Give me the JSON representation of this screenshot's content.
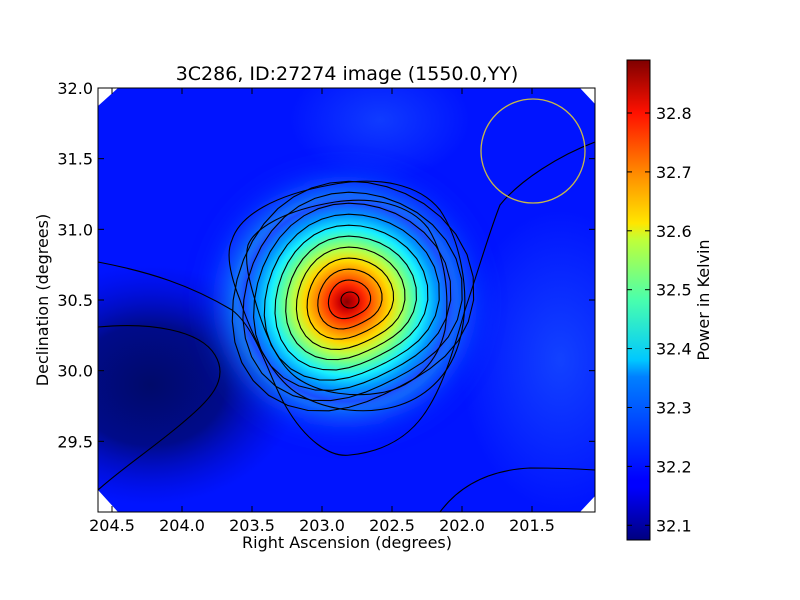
{
  "chart_data": {
    "type": "heatmap",
    "title": "3C286, ID:27274 image (1550.0,YY)",
    "xlabel": "Right Ascension (degrees)",
    "ylabel": "Declination (degrees)",
    "xlim": [
      204.6,
      201.05
    ],
    "ylim": [
      29.0,
      32.0
    ],
    "x_ticks": [
      "204.5",
      "204.0",
      "203.5",
      "203.0",
      "202.5",
      "202.0",
      "201.5"
    ],
    "x_tick_values": [
      204.5,
      204.0,
      203.5,
      203.0,
      202.5,
      202.0,
      201.5
    ],
    "y_ticks": [
      "29.5",
      "30.0",
      "30.5",
      "31.0",
      "31.5",
      "32.0"
    ],
    "y_tick_values": [
      29.5,
      30.0,
      30.5,
      31.0,
      31.5,
      32.0
    ],
    "colormap": "jet",
    "colorbar": {
      "label": "Power in Kelvin",
      "range": [
        32.075,
        32.89
      ],
      "ticks": [
        "32.1",
        "32.2",
        "32.3",
        "32.4",
        "32.5",
        "32.6",
        "32.7",
        "32.8"
      ],
      "tick_values": [
        32.1,
        32.2,
        32.3,
        32.4,
        32.5,
        32.6,
        32.7,
        32.8
      ]
    },
    "peak": {
      "ra": 202.78,
      "dec": 30.5,
      "value": 32.89
    },
    "beam_circle": {
      "ra": 201.5,
      "dec": 31.56,
      "radius_deg": 0.37,
      "color": "#c8b84a"
    }
  }
}
